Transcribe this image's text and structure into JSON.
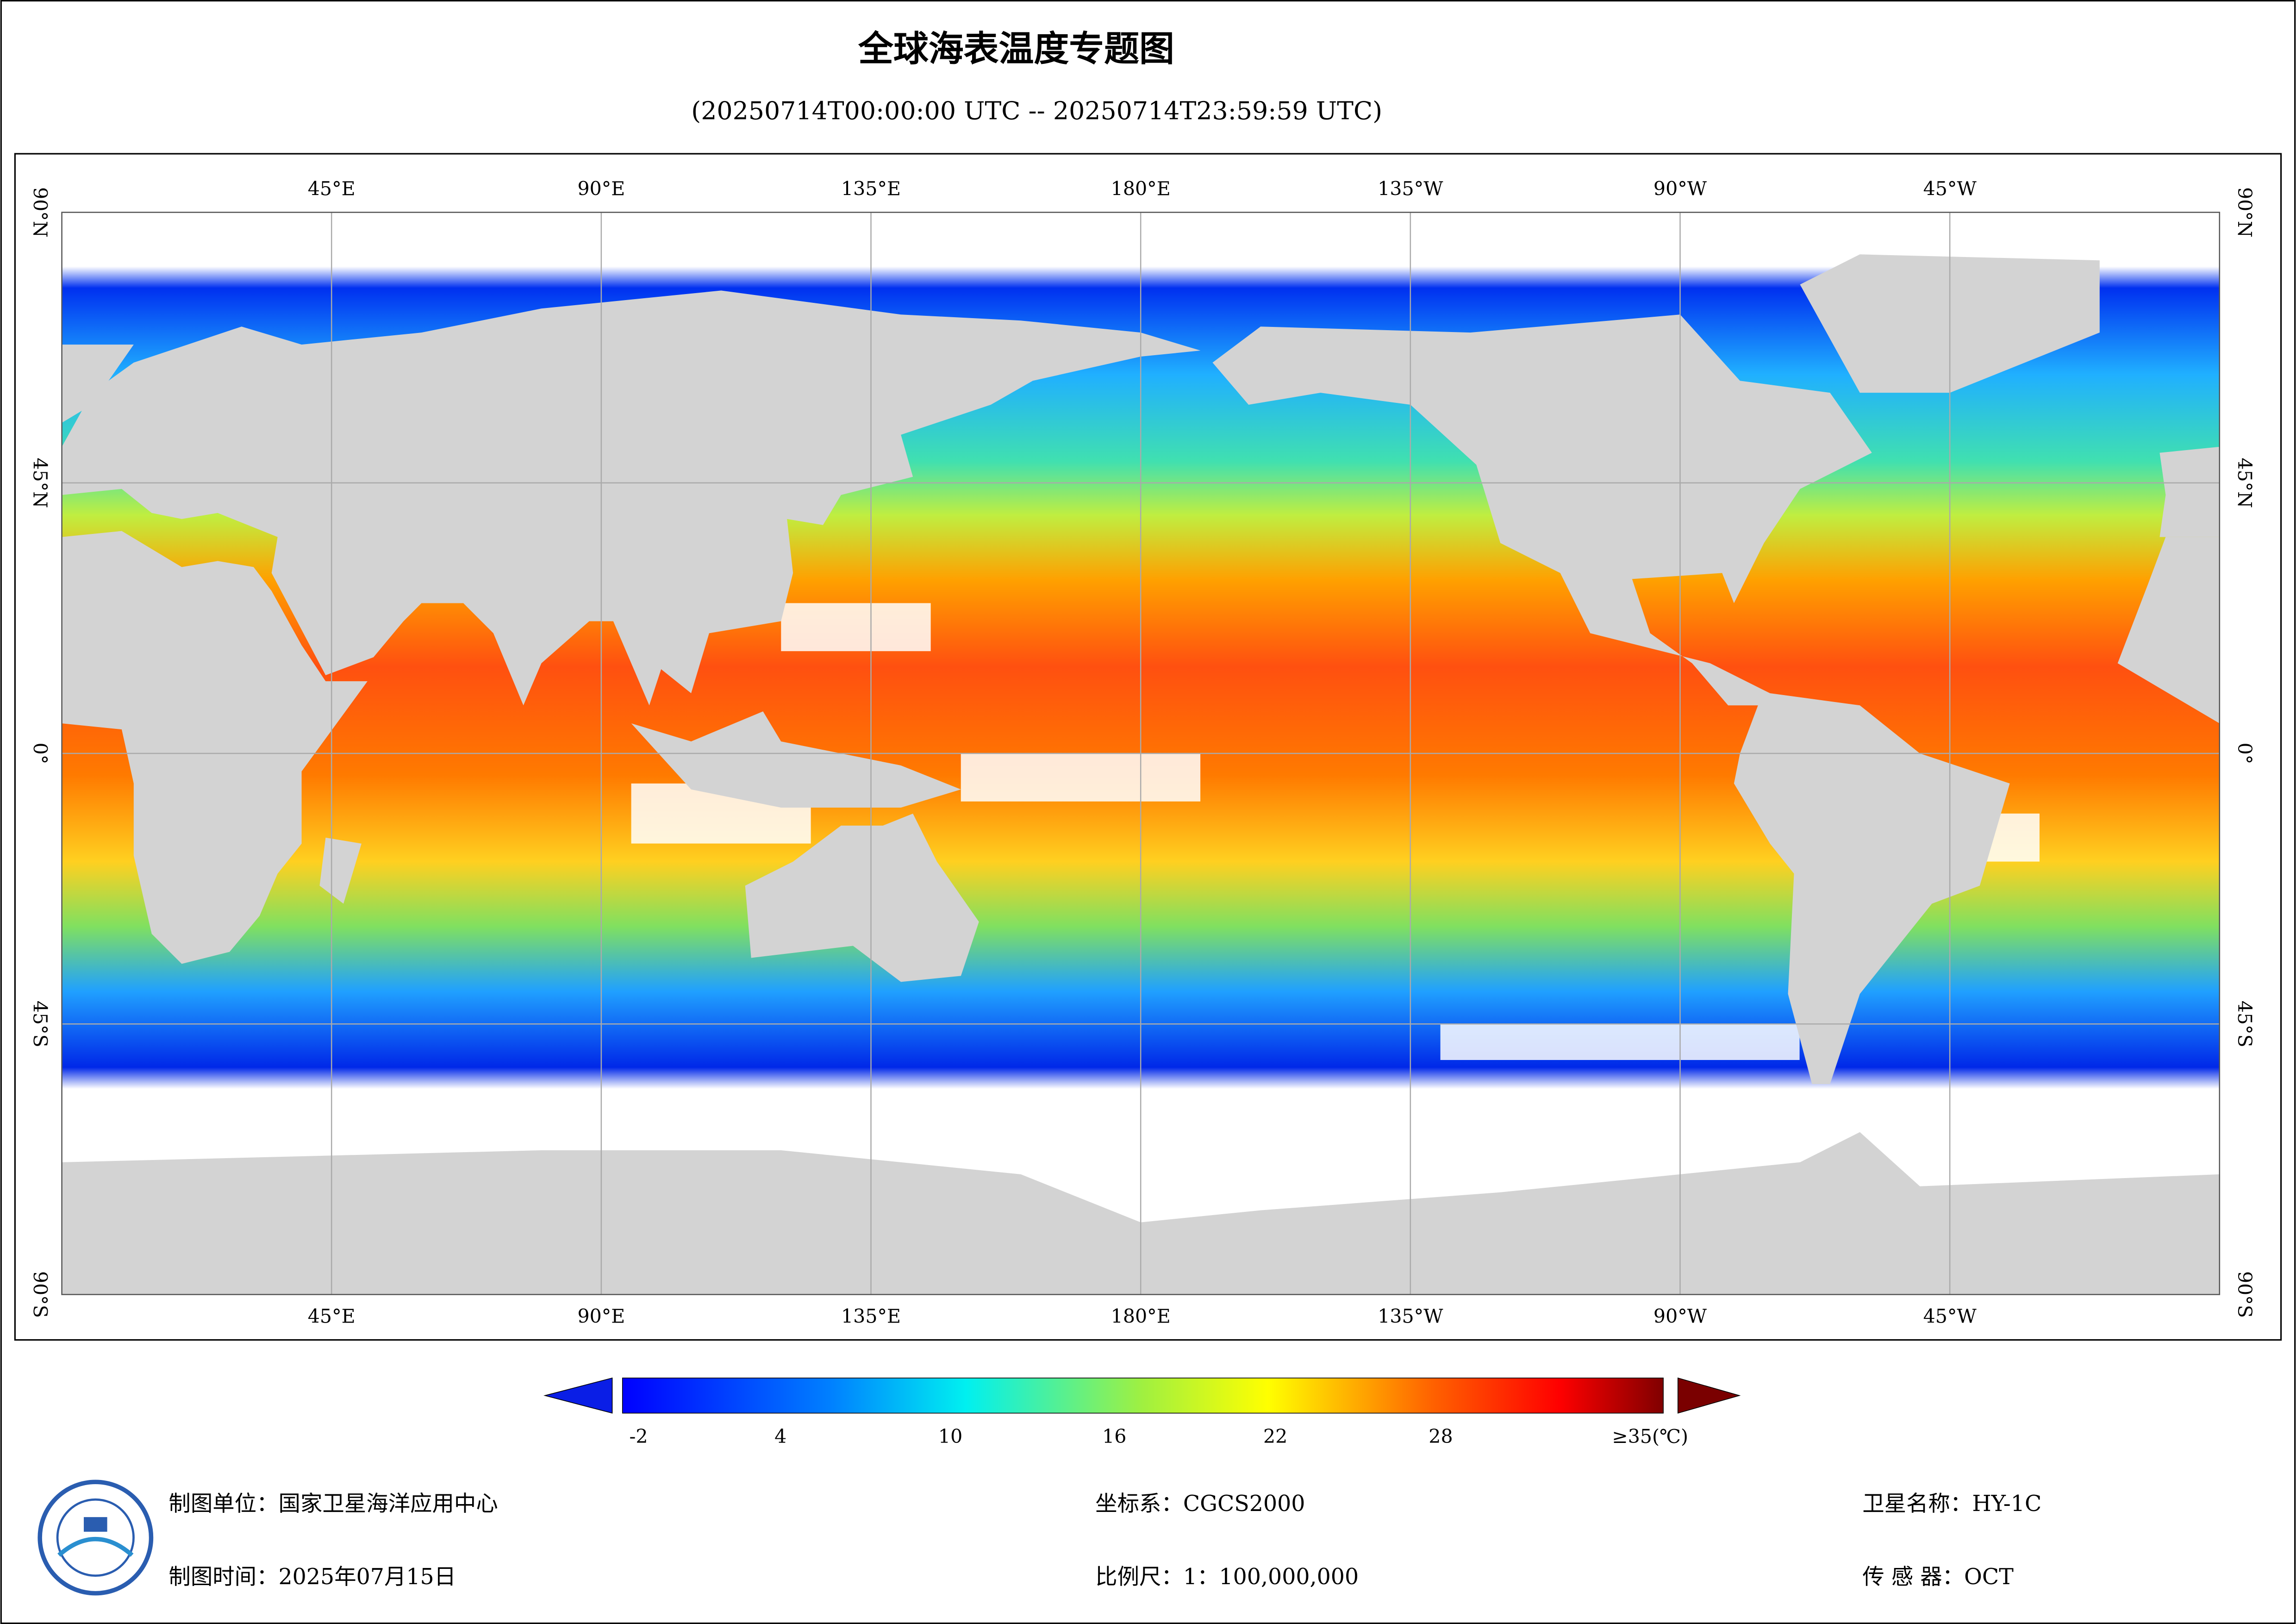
{
  "header": {
    "title": "全球海表温度专题图",
    "subtitle": "(20250714T00:00:00 UTC -- 20250714T23:59:59 UTC)"
  },
  "map": {
    "longitude_labels": [
      "45°E",
      "90°E",
      "135°E",
      "180°E",
      "135°W",
      "90°W",
      "45°W"
    ],
    "latitude_labels": [
      "90°N",
      "45°N",
      "0°",
      "45°S",
      "90°S"
    ]
  },
  "legend": {
    "labels": [
      "-2",
      "4",
      "10",
      "16",
      "22",
      "28",
      "≥35(℃)"
    ]
  },
  "footer": {
    "unit": "制图单位：国家卫星海洋应用中心",
    "date": "制图时间：2025年07月15日",
    "crs": "坐标系：CGCS2000",
    "scale": "比例尺：1：100,000,000",
    "satellite": "卫星名称：HY-1C",
    "sensor": "传 感 器：OCT"
  }
}
